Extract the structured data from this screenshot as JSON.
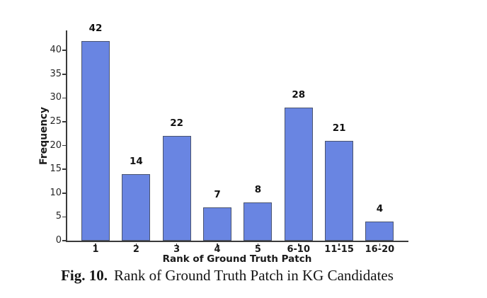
{
  "chart_data": {
    "type": "bar",
    "title": "",
    "categories": [
      "1",
      "2",
      "3",
      "4",
      "5",
      "6-10",
      "11-15",
      "16-20"
    ],
    "values": [
      42,
      14,
      22,
      7,
      8,
      28,
      21,
      4
    ],
    "xlabel": "Rank of Ground Truth Patch",
    "ylabel": "Frequency",
    "ylim": [
      0,
      44.2
    ],
    "yticks": [
      0,
      5,
      10,
      15,
      20,
      25,
      30,
      35,
      40
    ],
    "grid": false,
    "legend": "none",
    "show_value_labels": true,
    "bar_fill_color": "#6985E2",
    "bar_edge_color": "#4A5470",
    "axis_color": "#3A3A3A",
    "text_color": "#1A1A1A"
  },
  "caption": {
    "label": "Fig. 10.",
    "text": "Rank of Ground Truth Patch in KG Candidates"
  },
  "colors": {
    "background": "#FFFFFF"
  }
}
